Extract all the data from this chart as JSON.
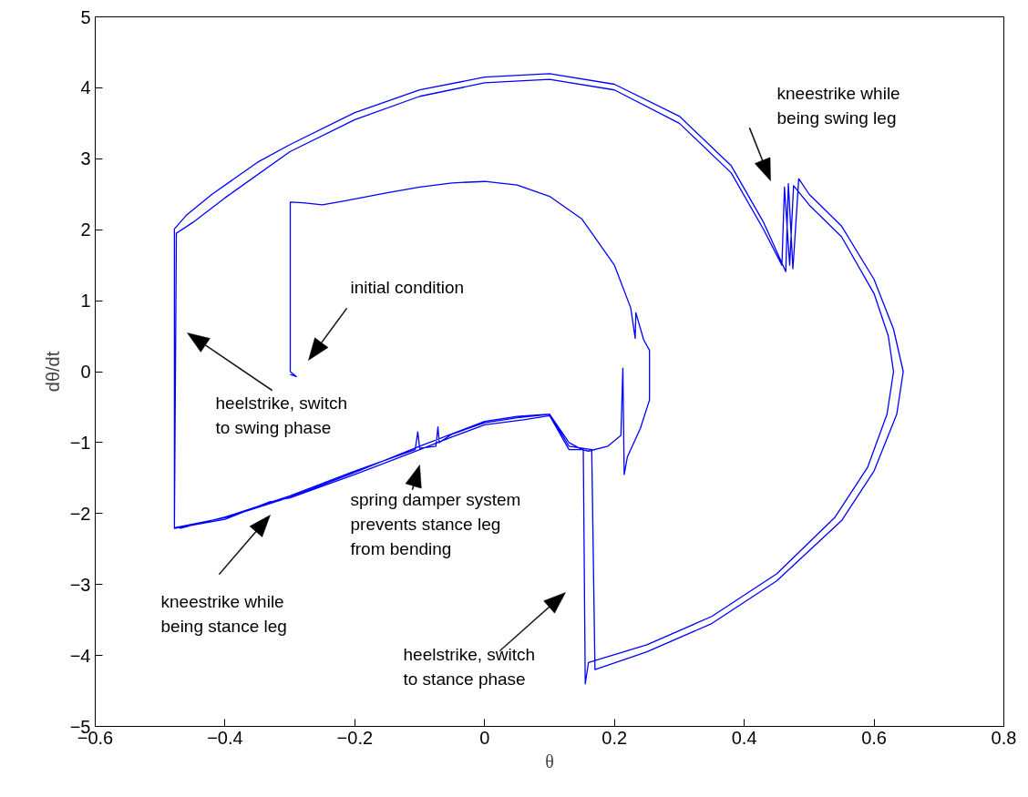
{
  "chart_data": {
    "type": "line",
    "xlabel": "θ",
    "ylabel": "dθ/dt",
    "xlim": [
      -0.6,
      0.8
    ],
    "ylim": [
      -5,
      5
    ],
    "xticks": [
      {
        "value": -0.6,
        "label": "−0.6"
      },
      {
        "value": -0.4,
        "label": "−0.4"
      },
      {
        "value": -0.2,
        "label": "−0.2"
      },
      0,
      0.2,
      0.4,
      0.6,
      0.8
    ],
    "yticks": [
      {
        "value": -5,
        "label": "−5"
      },
      {
        "value": -4,
        "label": "−4"
      },
      {
        "value": -3,
        "label": "−3"
      },
      {
        "value": -2,
        "label": "−2"
      },
      {
        "value": -1,
        "label": "−1"
      },
      0,
      1,
      2,
      3,
      4,
      5
    ],
    "grid": false,
    "marker": "none",
    "line_style": "solid",
    "series": [
      {
        "color": "#0000ff",
        "x": [
          -0.2995,
          -0.29,
          -0.2995,
          -0.2995,
          -0.28,
          -0.25,
          -0.22,
          -0.15,
          -0.1,
          -0.05,
          0,
          0.05,
          0.1,
          0.15,
          0.2,
          0.225,
          0.232,
          0.233,
          0.245,
          0.254,
          0.254,
          0.24,
          0.22,
          0.215,
          0.213,
          0.21,
          0.19,
          0.16,
          0.15,
          0.13,
          0.1,
          0.05,
          0,
          -0.1,
          -0.2,
          -0.3,
          -0.4,
          -0.478,
          -0.475,
          -0.45,
          -0.4,
          -0.3,
          -0.2,
          -0.1,
          0,
          0.1,
          0.2,
          0.3,
          0.38,
          0.43,
          0.458,
          0.462,
          0.47,
          0.476,
          0.5,
          0.55,
          0.6,
          0.622,
          0.63,
          0.62,
          0.59,
          0.54,
          0.45,
          0.35,
          0.25,
          0.16,
          0.155,
          0.152,
          0.13,
          0.1,
          0.06,
          0,
          -0.05,
          -0.1,
          -0.2,
          -0.3,
          -0.33,
          -0.4,
          -0.478,
          -0.478,
          -0.46,
          -0.42,
          -0.35,
          -0.3,
          -0.2,
          -0.1,
          0,
          0.1,
          0.2,
          0.3,
          0.38,
          0.43,
          0.464,
          0.468,
          0.475,
          0.484,
          0.5,
          0.55,
          0.6,
          0.63,
          0.645,
          0.635,
          0.6,
          0.55,
          0.45,
          0.35,
          0.25,
          0.17,
          0.165,
          0.13,
          0.1,
          0.08,
          0.05,
          0,
          -0.05,
          -0.07,
          -0.072,
          -0.075,
          -0.1,
          -0.103,
          -0.107,
          -0.2,
          -0.3,
          -0.4,
          -0.47
        ],
        "values": [
          -0.04,
          -0.07,
          0,
          2.39,
          2.38,
          2.35,
          2.4,
          2.52,
          2.6,
          2.66,
          2.68,
          2.63,
          2.47,
          2.15,
          1.5,
          0.9,
          0.47,
          0.83,
          0.45,
          0.3,
          -0.4,
          -0.8,
          -1.2,
          -1.45,
          0.05,
          -0.9,
          -1.05,
          -1.12,
          -1.1,
          -1.0,
          -0.6,
          -0.63,
          -0.7,
          -1.05,
          -1.42,
          -1.77,
          -2.06,
          -2.2,
          1.95,
          2.1,
          2.45,
          3.1,
          3.55,
          3.88,
          4.07,
          4.12,
          3.97,
          3.5,
          2.8,
          2.0,
          1.5,
          2.6,
          1.5,
          2.62,
          2.35,
          1.9,
          1.1,
          0.5,
          0,
          -0.6,
          -1.35,
          -2.05,
          -2.85,
          -3.45,
          -3.85,
          -4.1,
          -4.4,
          -1.1,
          -1.1,
          -0.62,
          -0.68,
          -0.75,
          -0.92,
          -1.1,
          -1.45,
          -1.78,
          -1.83,
          -2.08,
          -2.21,
          2.01,
          2.2,
          2.5,
          2.95,
          3.2,
          3.65,
          3.97,
          4.15,
          4.2,
          4.05,
          3.6,
          2.9,
          2.1,
          1.41,
          2.65,
          1.45,
          2.72,
          2.5,
          2.05,
          1.3,
          0.6,
          0,
          -0.6,
          -1.4,
          -2.1,
          -2.95,
          -3.55,
          -3.95,
          -4.2,
          -1.1,
          -1.05,
          -0.6,
          -0.62,
          -0.65,
          -0.72,
          -0.88,
          -1.0,
          -0.78,
          -1.05,
          -1.08,
          -0.85,
          -1.1,
          -1.4,
          -1.75,
          -2.05,
          -2.21
        ]
      }
    ],
    "annotations": [
      "initial condition",
      "heelstrike, switch\nto swing phase",
      "kneestrike while\nbeing swing leg",
      "kneestrike while\nbeing stance leg",
      "spring damper system\nprevents stance leg\nfrom bending",
      "heelstrike, switch\nto stance phase"
    ]
  }
}
